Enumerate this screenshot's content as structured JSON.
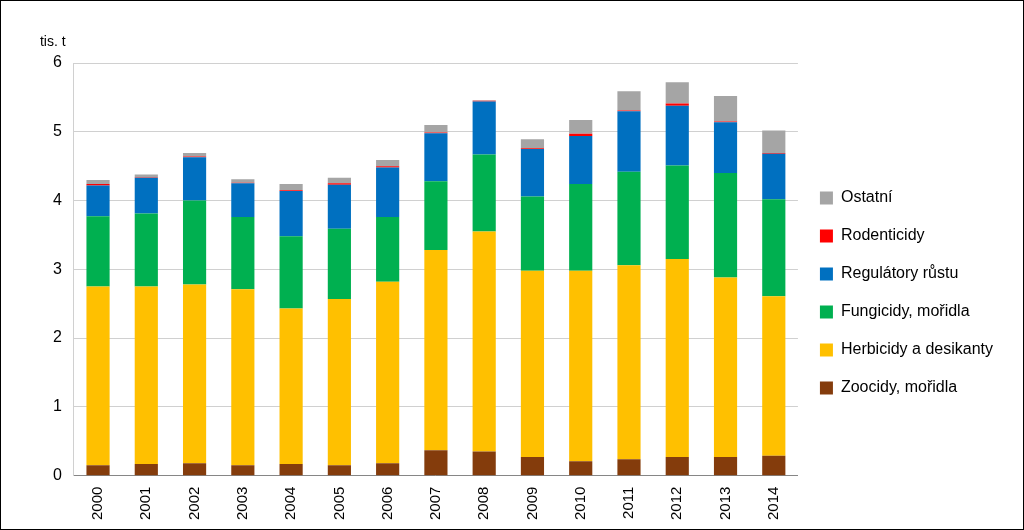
{
  "chart_data": {
    "type": "bar",
    "stacked": true,
    "y_label": "tis. t",
    "categories": [
      "2000",
      "2001",
      "2002",
      "2003",
      "2004",
      "2005",
      "2006",
      "2007",
      "2008",
      "2009",
      "2010",
      "2011",
      "2012",
      "2013",
      "2014"
    ],
    "series": [
      {
        "name": "Zoocidy, mořidla",
        "color": "#843c0c",
        "values": [
          0.15,
          0.17,
          0.18,
          0.15,
          0.17,
          0.15,
          0.18,
          0.37,
          0.35,
          0.27,
          0.21,
          0.24,
          0.27,
          0.27,
          0.29
        ]
      },
      {
        "name": "Herbicidy a desikanty",
        "color": "#ffc000",
        "values": [
          2.6,
          2.58,
          2.6,
          2.56,
          2.26,
          2.42,
          2.64,
          2.91,
          3.2,
          2.71,
          2.77,
          2.82,
          2.88,
          2.61,
          2.32
        ]
      },
      {
        "name": "Fungicidy, mořidla",
        "color": "#00b050",
        "values": [
          1.02,
          1.06,
          1.22,
          1.05,
          1.05,
          1.02,
          0.94,
          1.0,
          1.12,
          1.08,
          1.26,
          1.36,
          1.36,
          1.52,
          1.41
        ]
      },
      {
        "name": "Regulátory růstu",
        "color": "#0070c0",
        "values": [
          0.45,
          0.52,
          0.63,
          0.49,
          0.66,
          0.64,
          0.72,
          0.7,
          0.77,
          0.69,
          0.7,
          0.88,
          0.87,
          0.74,
          0.66
        ]
      },
      {
        "name": "Rodenticidy",
        "color": "#ff0000",
        "values": [
          0.02,
          0.01,
          0.01,
          0.01,
          0.01,
          0.02,
          0.02,
          0.01,
          0.01,
          0.01,
          0.03,
          0.01,
          0.03,
          0.01,
          0.01
        ]
      },
      {
        "name": "Ostatní",
        "color": "#a5a5a5",
        "values": [
          0.06,
          0.04,
          0.05,
          0.05,
          0.09,
          0.08,
          0.09,
          0.11,
          0.01,
          0.13,
          0.2,
          0.28,
          0.31,
          0.37,
          0.33
        ]
      }
    ],
    "ylim": [
      0,
      6
    ],
    "yticks": [
      0,
      1,
      2,
      3,
      4,
      5,
      6
    ],
    "grid": true,
    "legend": "right"
  }
}
